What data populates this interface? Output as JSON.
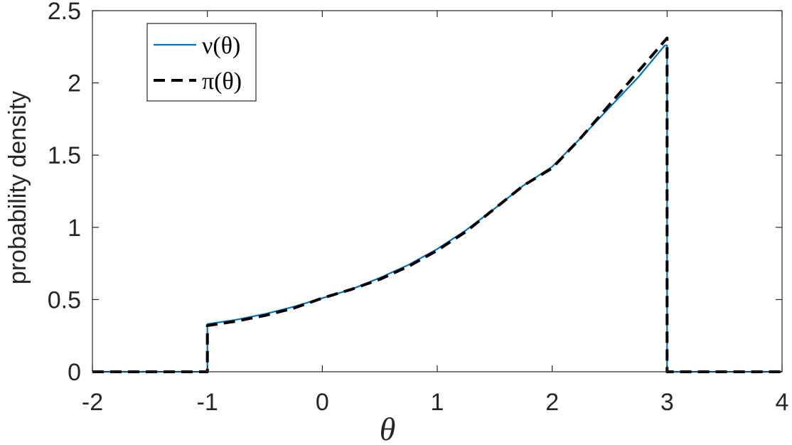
{
  "chart_data": {
    "type": "line",
    "xlabel": "θ",
    "ylabel": "probability density",
    "xlim": [
      -2,
      4
    ],
    "ylim": [
      0,
      2.5
    ],
    "xticks": [
      "-2",
      "-1",
      "0",
      "1",
      "2",
      "3",
      "4"
    ],
    "yticks": [
      "0",
      "0.5",
      "1",
      "1.5",
      "2",
      "2.5"
    ],
    "grid": false,
    "legend_position": "top-left",
    "series": [
      {
        "name": "ν(θ)",
        "style": "solid",
        "color": "#0072BD",
        "x": [
          -2,
          -1,
          -1,
          -0.75,
          -0.5,
          -0.25,
          0,
          0.25,
          0.5,
          0.75,
          1,
          1.25,
          1.5,
          1.75,
          2,
          2.25,
          2.5,
          2.75,
          2.98,
          3,
          3,
          4
        ],
        "y": [
          0,
          0,
          0.33,
          0.36,
          0.4,
          0.45,
          0.51,
          0.57,
          0.65,
          0.74,
          0.85,
          0.98,
          1.13,
          1.29,
          1.42,
          1.62,
          1.83,
          2.04,
          2.26,
          2.26,
          0,
          0
        ]
      },
      {
        "name": "π(θ)",
        "style": "dashed",
        "color": "#000000",
        "x": [
          -2,
          -1,
          -1,
          -0.75,
          -0.5,
          -0.25,
          0,
          0.25,
          0.5,
          0.75,
          1,
          1.25,
          1.5,
          1.75,
          2,
          2.25,
          2.5,
          2.75,
          3,
          3,
          4
        ],
        "y": [
          0,
          0,
          0.32,
          0.35,
          0.39,
          0.44,
          0.51,
          0.57,
          0.64,
          0.73,
          0.84,
          0.97,
          1.13,
          1.29,
          1.41,
          1.62,
          1.85,
          2.08,
          2.31,
          0,
          0
        ]
      }
    ]
  }
}
